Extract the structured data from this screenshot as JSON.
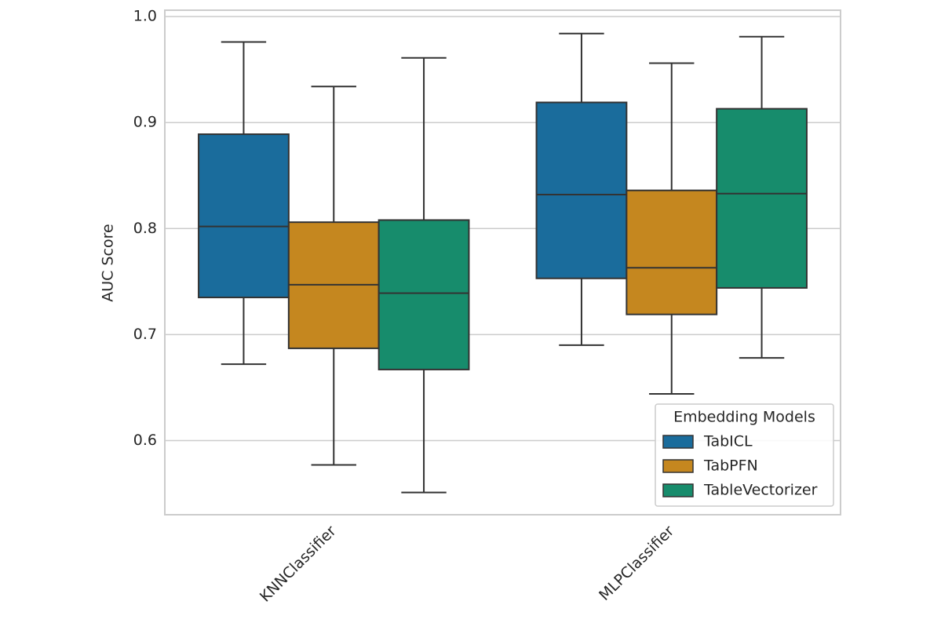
{
  "chart_data": {
    "type": "box",
    "y_label": "AUC Score",
    "categories": [
      "KNNClassifier",
      "MLPClassifier"
    ],
    "legend_title": "Embedding Models",
    "legend_position": "lower right",
    "grid": true,
    "ylim": [
      0.53,
      1.006
    ],
    "yticks": [
      0.6,
      0.7,
      0.8,
      0.9,
      {
        "value": 1.0,
        "label": "1.0"
      }
    ],
    "series": [
      {
        "name": "TabICL",
        "color": "#1a6c9c",
        "whislo": [
          0.672,
          0.69
        ],
        "q1": [
          0.735,
          0.753
        ],
        "med": [
          0.802,
          0.832
        ],
        "q3": [
          0.889,
          0.919
        ],
        "whishi": [
          0.976,
          0.984
        ]
      },
      {
        "name": "TabPFN",
        "color": "#c5871f",
        "whislo": [
          0.577,
          0.644
        ],
        "q1": [
          0.687,
          0.719
        ],
        "med": [
          0.747,
          0.763
        ],
        "q3": [
          0.806,
          0.836
        ],
        "whishi": [
          0.934,
          0.956
        ]
      },
      {
        "name": "TableVectorizer",
        "color": "#178c6c",
        "whislo": [
          0.551,
          0.678
        ],
        "q1": [
          0.667,
          0.744
        ],
        "med": [
          0.739,
          0.833
        ],
        "q3": [
          0.808,
          0.913
        ],
        "whishi": [
          0.961,
          0.981
        ]
      }
    ]
  }
}
